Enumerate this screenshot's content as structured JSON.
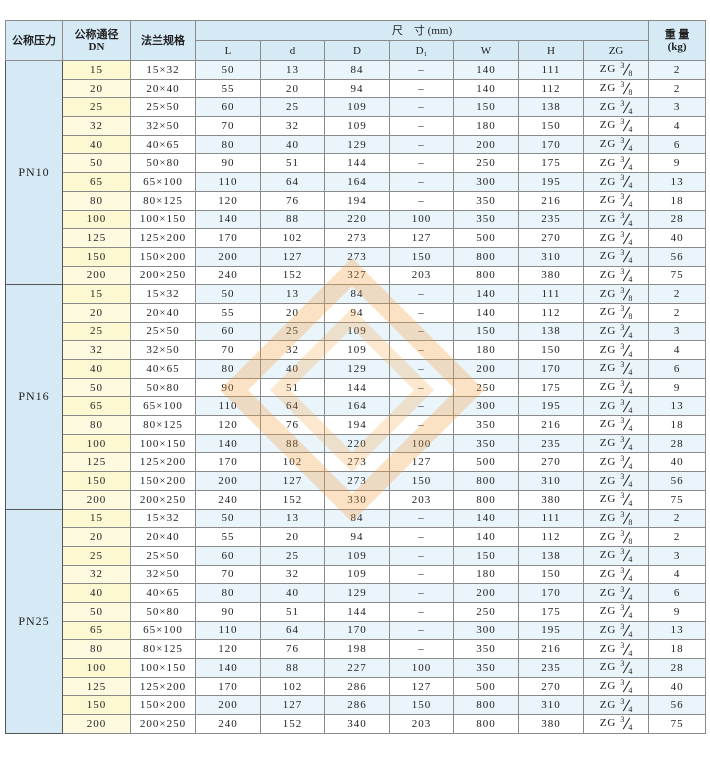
{
  "header": {
    "pressure": "公称压力",
    "dn": [
      "公称通径",
      "DN"
    ],
    "spec": "法兰规格",
    "dimensions": "尺　寸 (mm)",
    "columns": [
      "L",
      "d",
      "D",
      "D₁",
      "W",
      "H",
      "ZG"
    ],
    "weight": [
      "重 量",
      "(kg)"
    ]
  },
  "groups": [
    {
      "pressure": "PN10",
      "rows": [
        [
          15,
          "15×32",
          50,
          13,
          84,
          "–",
          140,
          111,
          {
            "prefix": "ZG",
            "num": "3",
            "den": "8"
          },
          2
        ],
        [
          20,
          "20×40",
          55,
          20,
          94,
          "–",
          140,
          112,
          {
            "prefix": "ZG",
            "num": "3",
            "den": "8"
          },
          2
        ],
        [
          25,
          "25×50",
          60,
          25,
          109,
          "–",
          150,
          138,
          {
            "prefix": "ZG",
            "num": "3",
            "den": "4"
          },
          3
        ],
        [
          32,
          "32×50",
          70,
          32,
          109,
          "–",
          180,
          150,
          {
            "prefix": "ZG",
            "num": "3",
            "den": "4"
          },
          4
        ],
        [
          40,
          "40×65",
          80,
          40,
          129,
          "–",
          200,
          170,
          {
            "prefix": "ZG",
            "num": "3",
            "den": "4"
          },
          6
        ],
        [
          50,
          "50×80",
          90,
          51,
          144,
          "–",
          250,
          175,
          {
            "prefix": "ZG",
            "num": "3",
            "den": "4"
          },
          9
        ],
        [
          65,
          "65×100",
          110,
          64,
          164,
          "–",
          300,
          195,
          {
            "prefix": "ZG",
            "num": "3",
            "den": "4"
          },
          13
        ],
        [
          80,
          "80×125",
          120,
          76,
          194,
          "–",
          350,
          216,
          {
            "prefix": "ZG",
            "num": "3",
            "den": "4"
          },
          18
        ],
        [
          100,
          "100×150",
          140,
          88,
          220,
          100,
          350,
          235,
          {
            "prefix": "ZG",
            "num": "3",
            "den": "4"
          },
          28
        ],
        [
          125,
          "125×200",
          170,
          102,
          273,
          127,
          500,
          270,
          {
            "prefix": "ZG",
            "num": "3",
            "den": "4"
          },
          40
        ],
        [
          150,
          "150×200",
          200,
          127,
          273,
          150,
          800,
          310,
          {
            "prefix": "ZG",
            "num": "3",
            "den": "4"
          },
          56
        ],
        [
          200,
          "200×250",
          240,
          152,
          327,
          203,
          800,
          380,
          {
            "prefix": "ZG",
            "num": "3",
            "den": "4"
          },
          75
        ]
      ]
    },
    {
      "pressure": "PN16",
      "rows": [
        [
          15,
          "15×32",
          50,
          13,
          84,
          "–",
          140,
          111,
          {
            "prefix": "ZG",
            "num": "3",
            "den": "8"
          },
          2
        ],
        [
          20,
          "20×40",
          55,
          20,
          94,
          "–",
          140,
          112,
          {
            "prefix": "ZG",
            "num": "3",
            "den": "8"
          },
          2
        ],
        [
          25,
          "25×50",
          60,
          25,
          109,
          "–",
          150,
          138,
          {
            "prefix": "ZG",
            "num": "3",
            "den": "4"
          },
          3
        ],
        [
          32,
          "32×50",
          70,
          32,
          109,
          "–",
          180,
          150,
          {
            "prefix": "ZG",
            "num": "3",
            "den": "4"
          },
          4
        ],
        [
          40,
          "40×65",
          80,
          40,
          129,
          "–",
          200,
          170,
          {
            "prefix": "ZG",
            "num": "3",
            "den": "4"
          },
          6
        ],
        [
          50,
          "50×80",
          90,
          51,
          144,
          "–",
          250,
          175,
          {
            "prefix": "ZG",
            "num": "3",
            "den": "4"
          },
          9
        ],
        [
          65,
          "65×100",
          110,
          64,
          164,
          "–",
          300,
          195,
          {
            "prefix": "ZG",
            "num": "3",
            "den": "4"
          },
          13
        ],
        [
          80,
          "80×125",
          120,
          76,
          194,
          "–",
          350,
          216,
          {
            "prefix": "ZG",
            "num": "3",
            "den": "4"
          },
          18
        ],
        [
          100,
          "100×150",
          140,
          88,
          220,
          100,
          350,
          235,
          {
            "prefix": "ZG",
            "num": "3",
            "den": "4"
          },
          28
        ],
        [
          125,
          "125×200",
          170,
          102,
          273,
          127,
          500,
          270,
          {
            "prefix": "ZG",
            "num": "3",
            "den": "4"
          },
          40
        ],
        [
          150,
          "150×200",
          200,
          127,
          273,
          150,
          800,
          310,
          {
            "prefix": "ZG",
            "num": "3",
            "den": "4"
          },
          56
        ],
        [
          200,
          "200×250",
          240,
          152,
          330,
          203,
          800,
          380,
          {
            "prefix": "ZG",
            "num": "3",
            "den": "4"
          },
          75
        ]
      ]
    },
    {
      "pressure": "PN25",
      "rows": [
        [
          15,
          "15×32",
          50,
          13,
          84,
          "–",
          140,
          111,
          {
            "prefix": "ZG",
            "num": "3",
            "den": "8"
          },
          2
        ],
        [
          20,
          "20×40",
          55,
          20,
          94,
          "–",
          140,
          112,
          {
            "prefix": "ZG",
            "num": "3",
            "den": "8"
          },
          2
        ],
        [
          25,
          "25×50",
          60,
          25,
          109,
          "–",
          150,
          138,
          {
            "prefix": "ZG",
            "num": "3",
            "den": "4"
          },
          3
        ],
        [
          32,
          "32×50",
          70,
          32,
          109,
          "–",
          180,
          150,
          {
            "prefix": "ZG",
            "num": "3",
            "den": "4"
          },
          4
        ],
        [
          40,
          "40×65",
          80,
          40,
          129,
          "–",
          200,
          170,
          {
            "prefix": "ZG",
            "num": "3",
            "den": "4"
          },
          6
        ],
        [
          50,
          "50×80",
          90,
          51,
          144,
          "–",
          250,
          175,
          {
            "prefix": "ZG",
            "num": "3",
            "den": "4"
          },
          9
        ],
        [
          65,
          "65×100",
          110,
          64,
          170,
          "–",
          300,
          195,
          {
            "prefix": "ZG",
            "num": "3",
            "den": "4"
          },
          13
        ],
        [
          80,
          "80×125",
          120,
          76,
          198,
          "–",
          350,
          216,
          {
            "prefix": "ZG",
            "num": "3",
            "den": "4"
          },
          18
        ],
        [
          100,
          "100×150",
          140,
          88,
          227,
          100,
          350,
          235,
          {
            "prefix": "ZG",
            "num": "3",
            "den": "4"
          },
          28
        ],
        [
          125,
          "125×200",
          170,
          102,
          286,
          127,
          500,
          270,
          {
            "prefix": "ZG",
            "num": "3",
            "den": "4"
          },
          40
        ],
        [
          150,
          "150×200",
          200,
          127,
          286,
          150,
          800,
          310,
          {
            "prefix": "ZG",
            "num": "3",
            "den": "4"
          },
          56
        ],
        [
          200,
          "200×250",
          240,
          152,
          340,
          203,
          800,
          380,
          {
            "prefix": "ZG",
            "num": "3",
            "den": "4"
          },
          75
        ]
      ]
    }
  ]
}
